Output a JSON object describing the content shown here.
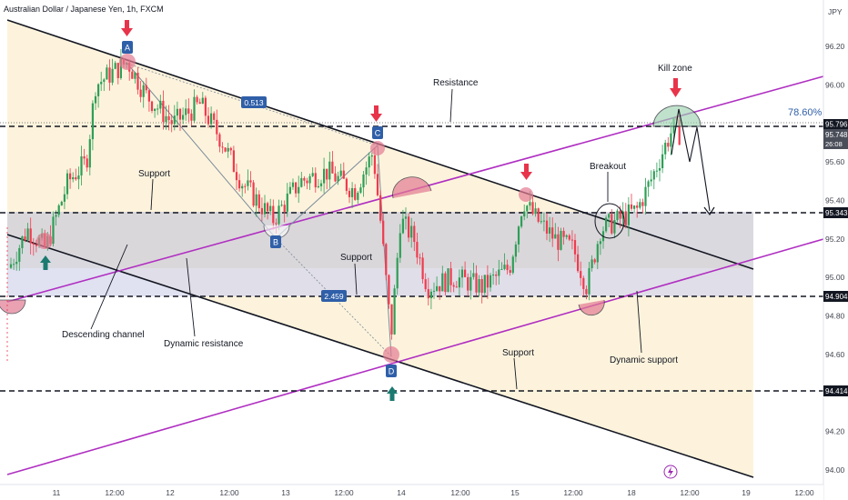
{
  "header": {
    "symbol_title": "Australian Dollar / Japanese Yen, 1h, FXCM",
    "currency": "JPY"
  },
  "chart_data": {
    "type": "candlestick",
    "title": "Australian Dollar / Japanese Yen, 1h, FXCM",
    "ylim": [
      93.95,
      96.3
    ],
    "y_ticks": [
      94.0,
      94.2,
      94.4,
      94.6,
      94.8,
      95.0,
      95.2,
      95.4,
      95.6,
      95.8,
      96.0,
      96.2
    ],
    "x_ticks": [
      "11",
      "12:00",
      "12",
      "12:00",
      "13",
      "12:00",
      "14",
      "12:00",
      "15",
      "12:00",
      "18",
      "12:00",
      "19",
      "12:00"
    ],
    "price_labels": {
      "level_95796": "95.796",
      "last_price": "95.748",
      "countdown": "26:08",
      "level_95343": "95.343",
      "level_94904": "94.904",
      "level_94414": "94.414"
    },
    "horizontal_levels": [
      95.796,
      95.343,
      94.904,
      94.414
    ],
    "fib_label": "78.60%",
    "annotations": {
      "resistance": "Resistance",
      "kill_zone": "Kill zone",
      "support_1": "Support",
      "support_2": "Support",
      "support_3": "Support",
      "breakout": "Breakout",
      "descending_channel": "Descending channel",
      "dynamic_resistance": "Dynamic resistance",
      "dynamic_support": "Dynamic support",
      "ratio_1": "0.513",
      "ratio_2": "2.459",
      "point_a": "A",
      "point_b": "B",
      "point_c": "C",
      "point_d": "D"
    },
    "colors": {
      "bull": "#2e9e57",
      "bear": "#ef3b4f",
      "channel": "#111111",
      "dynamic": "#b02fc2",
      "marker": "#e8344a",
      "up_arrow": "#1b7a70",
      "badge": "#2f5fa8"
    }
  }
}
